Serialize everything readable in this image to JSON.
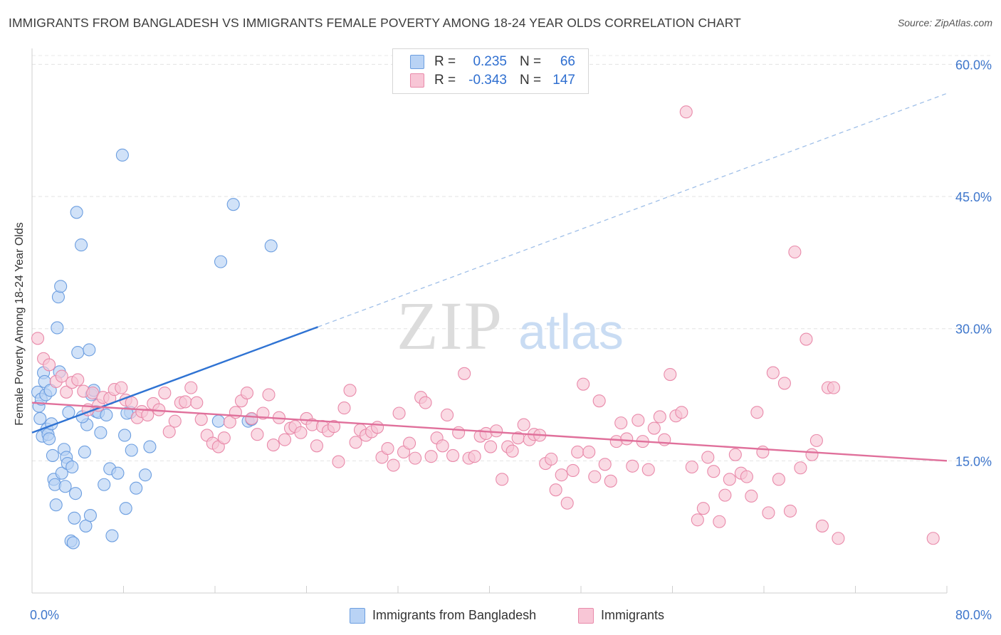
{
  "header": {
    "title": "IMMIGRANTS FROM BANGLADESH VS IMMIGRANTS FEMALE POVERTY AMONG 18-24 YEAR OLDS CORRELATION CHART",
    "source": "Source: ZipAtlas.com"
  },
  "watermark": {
    "zip": "ZIP",
    "atlas": "atlas"
  },
  "stats_box": {
    "rows": [
      {
        "r_label": "R =",
        "r_value": "0.235",
        "n_label": "N =",
        "n_value": "66",
        "color": "#6c9ee0"
      },
      {
        "r_label": "R =",
        "r_value": "-0.343",
        "n_label": "N =",
        "n_value": "147",
        "color": "#e98aaa"
      }
    ]
  },
  "legend": {
    "items": [
      {
        "label": "Immigrants from Bangladesh",
        "color": "#b9d3f5"
      },
      {
        "label": "Immigrants",
        "color": "#f8c6d6"
      }
    ]
  },
  "chart_data": {
    "type": "scatter",
    "title": "IMMIGRANTS FROM BANGLADESH VS IMMIGRANTS FEMALE POVERTY AMONG 18-24 YEAR OLDS CORRELATION CHART",
    "xlabel": "",
    "ylabel": "Female Poverty Among 18-24 Year Olds",
    "xlim": [
      0,
      80
    ],
    "ylim": [
      0,
      61
    ],
    "x_tick_labels": [
      "0.0%",
      "80.0%"
    ],
    "y_ticks": [
      15,
      30,
      45,
      60
    ],
    "y_tick_labels": [
      "15.0%",
      "30.0%",
      "45.0%",
      "60.0%"
    ],
    "grid": true,
    "legend_position": "bottom",
    "series": [
      {
        "name": "Immigrants from Bangladesh",
        "color": "#6c9ee0",
        "fill": "#b9d3f5",
        "trend": {
          "x": [
            0,
            25
          ],
          "y": [
            18.2,
            30.2
          ],
          "dashed_extension_to": [
            80,
            56.7
          ]
        },
        "points": [
          [
            0.5,
            22.8
          ],
          [
            0.6,
            21.2
          ],
          [
            0.7,
            19.8
          ],
          [
            0.8,
            22.0
          ],
          [
            0.9,
            17.8
          ],
          [
            1.0,
            25.0
          ],
          [
            1.1,
            24.0
          ],
          [
            1.2,
            22.5
          ],
          [
            1.3,
            18.6
          ],
          [
            1.4,
            18.0
          ],
          [
            1.5,
            17.5
          ],
          [
            1.6,
            23.0
          ],
          [
            1.7,
            19.2
          ],
          [
            1.8,
            15.6
          ],
          [
            1.9,
            12.9
          ],
          [
            2.0,
            12.3
          ],
          [
            2.1,
            10.0
          ],
          [
            2.2,
            30.1
          ],
          [
            2.3,
            33.6
          ],
          [
            2.5,
            34.8
          ],
          [
            2.4,
            25.1
          ],
          [
            2.6,
            13.6
          ],
          [
            2.8,
            16.3
          ],
          [
            2.9,
            12.1
          ],
          [
            3.0,
            15.4
          ],
          [
            3.1,
            14.7
          ],
          [
            3.2,
            20.5
          ],
          [
            3.4,
            5.9
          ],
          [
            3.5,
            14.3
          ],
          [
            3.6,
            5.7
          ],
          [
            3.7,
            8.5
          ],
          [
            3.8,
            11.3
          ],
          [
            3.9,
            43.2
          ],
          [
            4.0,
            27.3
          ],
          [
            4.3,
            39.5
          ],
          [
            4.6,
            16.0
          ],
          [
            4.7,
            7.6
          ],
          [
            4.8,
            19.1
          ],
          [
            5.0,
            27.6
          ],
          [
            5.1,
            8.8
          ],
          [
            5.2,
            22.5
          ],
          [
            5.4,
            23.0
          ],
          [
            5.6,
            20.6
          ],
          [
            5.8,
            20.5
          ],
          [
            6.0,
            18.2
          ],
          [
            6.3,
            12.3
          ],
          [
            6.8,
            14.1
          ],
          [
            7.0,
            6.5
          ],
          [
            7.5,
            13.6
          ],
          [
            7.9,
            49.7
          ],
          [
            8.1,
            17.9
          ],
          [
            8.2,
            9.6
          ],
          [
            8.6,
            20.5
          ],
          [
            8.3,
            20.4
          ],
          [
            8.7,
            16.2
          ],
          [
            9.1,
            11.9
          ],
          [
            9.9,
            13.4
          ],
          [
            10.3,
            16.6
          ],
          [
            16.3,
            19.5
          ],
          [
            16.5,
            37.6
          ],
          [
            17.6,
            44.1
          ],
          [
            18.9,
            19.5
          ],
          [
            19.2,
            19.7
          ],
          [
            20.9,
            39.4
          ],
          [
            4.4,
            20.0
          ],
          [
            6.5,
            20.2
          ]
        ]
      },
      {
        "name": "Immigrants",
        "color": "#e98aaa",
        "fill": "#f8c6d6",
        "trend": {
          "x": [
            0,
            80
          ],
          "y": [
            21.6,
            15.0
          ]
        },
        "points": [
          [
            0.5,
            28.9
          ],
          [
            1.0,
            26.6
          ],
          [
            1.5,
            25.9
          ],
          [
            2.1,
            24.0
          ],
          [
            2.6,
            24.6
          ],
          [
            3.0,
            22.8
          ],
          [
            3.5,
            23.9
          ],
          [
            4.0,
            24.2
          ],
          [
            4.5,
            22.9
          ],
          [
            4.9,
            20.8
          ],
          [
            5.3,
            22.7
          ],
          [
            5.8,
            21.3
          ],
          [
            6.2,
            22.2
          ],
          [
            6.8,
            22.1
          ],
          [
            7.2,
            23.1
          ],
          [
            7.8,
            23.3
          ],
          [
            8.2,
            21.9
          ],
          [
            8.7,
            21.6
          ],
          [
            9.2,
            19.9
          ],
          [
            9.6,
            20.6
          ],
          [
            10.1,
            20.2
          ],
          [
            10.6,
            21.5
          ],
          [
            11.1,
            20.8
          ],
          [
            11.6,
            22.7
          ],
          [
            12.0,
            18.3
          ],
          [
            12.5,
            19.5
          ],
          [
            13.0,
            21.6
          ],
          [
            13.4,
            21.7
          ],
          [
            13.9,
            23.3
          ],
          [
            14.4,
            21.6
          ],
          [
            14.8,
            19.7
          ],
          [
            15.3,
            17.9
          ],
          [
            15.8,
            17.0
          ],
          [
            16.3,
            16.6
          ],
          [
            16.8,
            17.6
          ],
          [
            17.3,
            19.4
          ],
          [
            17.8,
            20.5
          ],
          [
            18.3,
            21.8
          ],
          [
            18.8,
            22.7
          ],
          [
            19.2,
            19.8
          ],
          [
            19.7,
            18.0
          ],
          [
            20.2,
            20.4
          ],
          [
            20.7,
            22.5
          ],
          [
            21.1,
            16.8
          ],
          [
            21.6,
            19.9
          ],
          [
            22.1,
            17.4
          ],
          [
            22.6,
            18.7
          ],
          [
            23.0,
            18.9
          ],
          [
            23.5,
            18.2
          ],
          [
            24.0,
            19.8
          ],
          [
            24.5,
            19.1
          ],
          [
            24.9,
            16.7
          ],
          [
            25.4,
            18.9
          ],
          [
            25.9,
            18.4
          ],
          [
            26.4,
            18.9
          ],
          [
            26.8,
            14.9
          ],
          [
            27.3,
            21.0
          ],
          [
            27.8,
            23.0
          ],
          [
            28.3,
            17.1
          ],
          [
            28.7,
            18.5
          ],
          [
            29.2,
            17.9
          ],
          [
            29.7,
            18.3
          ],
          [
            30.2,
            18.8
          ],
          [
            30.6,
            15.4
          ],
          [
            31.1,
            16.4
          ],
          [
            31.6,
            14.5
          ],
          [
            32.1,
            20.4
          ],
          [
            32.5,
            16.0
          ],
          [
            33.0,
            17.0
          ],
          [
            33.5,
            15.3
          ],
          [
            34.0,
            22.2
          ],
          [
            34.4,
            21.6
          ],
          [
            34.9,
            15.5
          ],
          [
            35.4,
            17.6
          ],
          [
            35.9,
            16.7
          ],
          [
            36.3,
            20.2
          ],
          [
            36.8,
            15.6
          ],
          [
            37.3,
            18.2
          ],
          [
            37.8,
            24.9
          ],
          [
            38.2,
            15.3
          ],
          [
            38.7,
            15.5
          ],
          [
            39.2,
            17.8
          ],
          [
            39.7,
            18.1
          ],
          [
            40.1,
            16.6
          ],
          [
            40.6,
            18.4
          ],
          [
            41.1,
            12.9
          ],
          [
            41.6,
            16.6
          ],
          [
            42.0,
            16.1
          ],
          [
            42.5,
            17.6
          ],
          [
            43.0,
            19.1
          ],
          [
            43.5,
            17.4
          ],
          [
            43.9,
            18.0
          ],
          [
            44.4,
            17.9
          ],
          [
            44.9,
            14.7
          ],
          [
            45.4,
            15.2
          ],
          [
            45.8,
            11.7
          ],
          [
            46.3,
            13.4
          ],
          [
            46.8,
            10.2
          ],
          [
            47.3,
            13.9
          ],
          [
            47.7,
            16.0
          ],
          [
            48.2,
            23.7
          ],
          [
            48.7,
            16.0
          ],
          [
            49.2,
            13.2
          ],
          [
            49.6,
            21.8
          ],
          [
            50.1,
            14.6
          ],
          [
            50.6,
            12.7
          ],
          [
            51.1,
            17.2
          ],
          [
            51.5,
            19.3
          ],
          [
            52.0,
            17.5
          ],
          [
            52.5,
            14.4
          ],
          [
            53.0,
            19.6
          ],
          [
            53.4,
            17.2
          ],
          [
            53.9,
            14.0
          ],
          [
            54.4,
            18.7
          ],
          [
            54.9,
            20.0
          ],
          [
            55.3,
            17.4
          ],
          [
            55.8,
            24.8
          ],
          [
            56.3,
            20.1
          ],
          [
            56.8,
            20.5
          ],
          [
            57.2,
            54.6
          ],
          [
            57.7,
            14.3
          ],
          [
            58.2,
            8.3
          ],
          [
            58.7,
            9.6
          ],
          [
            59.1,
            15.4
          ],
          [
            59.6,
            13.8
          ],
          [
            60.1,
            8.1
          ],
          [
            60.6,
            11.1
          ],
          [
            61.0,
            12.9
          ],
          [
            61.5,
            15.7
          ],
          [
            62.0,
            13.6
          ],
          [
            62.5,
            13.2
          ],
          [
            62.9,
            11.0
          ],
          [
            63.4,
            20.5
          ],
          [
            63.9,
            16.0
          ],
          [
            64.4,
            9.1
          ],
          [
            64.8,
            25.0
          ],
          [
            65.3,
            12.9
          ],
          [
            65.8,
            23.8
          ],
          [
            66.3,
            9.3
          ],
          [
            66.7,
            38.7
          ],
          [
            67.2,
            14.2
          ],
          [
            67.7,
            28.8
          ],
          [
            68.2,
            15.7
          ],
          [
            68.6,
            17.3
          ],
          [
            69.1,
            7.6
          ],
          [
            69.6,
            23.3
          ],
          [
            70.1,
            23.3
          ],
          [
            70.5,
            6.2
          ],
          [
            78.8,
            6.2
          ]
        ]
      }
    ]
  }
}
